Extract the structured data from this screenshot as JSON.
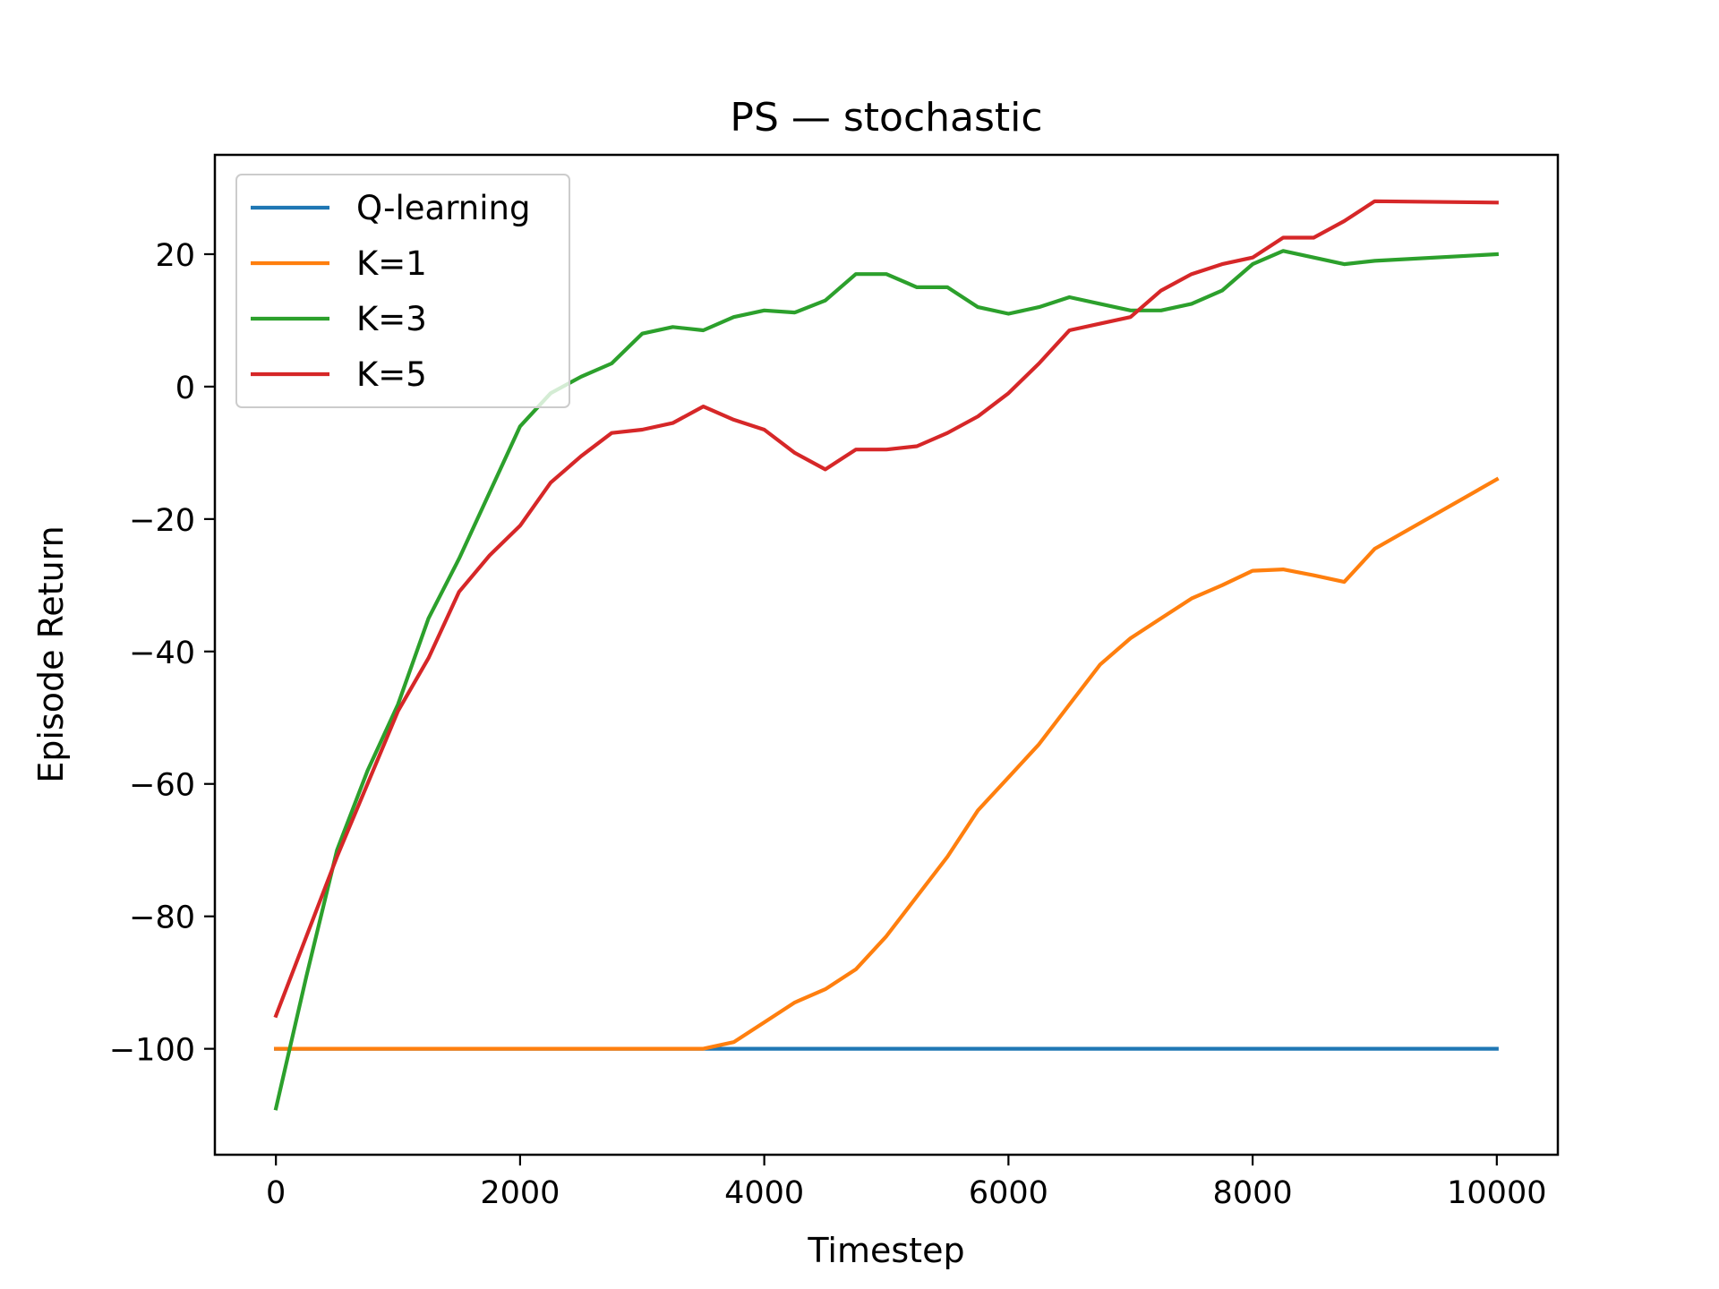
{
  "chart_data": {
    "type": "line",
    "title": "PS — stochastic",
    "xlabel": "Timestep",
    "ylabel": "Episode Return",
    "xlim": [
      -500,
      10500
    ],
    "ylim": [
      -116,
      35
    ],
    "xticks": [
      0,
      2000,
      4000,
      6000,
      8000,
      10000
    ],
    "xtick_labels": [
      "0",
      "2000",
      "4000",
      "6000",
      "8000",
      "10000"
    ],
    "yticks": [
      20,
      0,
      -20,
      -40,
      -60,
      -80,
      -100
    ],
    "ytick_labels": [
      "20",
      "0",
      "−20",
      "−40",
      "−60",
      "−80",
      "−100"
    ],
    "grid": false,
    "legend_position": "upper-left",
    "series": [
      {
        "name": "Q-learning",
        "color": "#1f77b4",
        "x": [
          0,
          10000
        ],
        "y": [
          -100,
          -100
        ]
      },
      {
        "name": "K=1",
        "color": "#ff7f0e",
        "x": [
          0,
          250,
          500,
          750,
          1000,
          1250,
          1500,
          1750,
          2000,
          2250,
          2500,
          2750,
          3000,
          3250,
          3500,
          3750,
          4000,
          4250,
          4500,
          4750,
          5000,
          5250,
          5500,
          5750,
          6000,
          6250,
          6500,
          6750,
          7000,
          7250,
          7500,
          7750,
          8000,
          8250,
          8500,
          8750,
          9000,
          10000
        ],
        "y": [
          -100,
          -100,
          -100,
          -100,
          -100,
          -100,
          -100,
          -100,
          -100,
          -100,
          -100,
          -100,
          -100,
          -100,
          -100,
          -99,
          -96,
          -93,
          -91,
          -88,
          -83,
          -77,
          -71,
          -64,
          -59,
          -54,
          -48,
          -42,
          -38,
          -35,
          -32,
          -30,
          -27.8,
          -27.6,
          -28.5,
          -29.5,
          -24.5,
          -14
        ]
      },
      {
        "name": "K=3",
        "color": "#2ca02c",
        "x": [
          0,
          250,
          500,
          750,
          1000,
          1250,
          1500,
          1750,
          2000,
          2250,
          2500,
          2750,
          3000,
          3250,
          3500,
          3750,
          4000,
          4250,
          4500,
          4750,
          5000,
          5250,
          5500,
          5750,
          6000,
          6250,
          6500,
          6750,
          7000,
          7250,
          7500,
          7750,
          8000,
          8250,
          8500,
          8750,
          9000,
          10000
        ],
        "y": [
          -109,
          -89,
          -70,
          -58,
          -48,
          -35,
          -26,
          -16,
          -6,
          -1,
          1.5,
          3.5,
          8,
          9,
          8.5,
          10.5,
          11.5,
          11.2,
          13,
          17,
          17,
          15,
          15,
          12,
          11,
          12,
          13.5,
          12.5,
          11.5,
          11.5,
          12.5,
          14.5,
          18.5,
          20.5,
          19.5,
          18.5,
          19,
          20
        ]
      },
      {
        "name": "K=5",
        "color": "#d62728",
        "x": [
          0,
          250,
          500,
          750,
          1000,
          1250,
          1500,
          1750,
          2000,
          2250,
          2500,
          2750,
          3000,
          3250,
          3500,
          3750,
          4000,
          4250,
          4500,
          4750,
          5000,
          5250,
          5500,
          5750,
          6000,
          6250,
          6500,
          6750,
          7000,
          7250,
          7500,
          7750,
          8000,
          8250,
          8500,
          8750,
          9000,
          10000
        ],
        "y": [
          -95,
          -83,
          -71,
          -60,
          -49,
          -41,
          -31,
          -25.5,
          -21,
          -14.5,
          -10.5,
          -7,
          -6.5,
          -5.5,
          -3,
          -5,
          -6.5,
          -10,
          -12.5,
          -9.5,
          -9.5,
          -9,
          -7,
          -4.5,
          -1,
          3.5,
          8.5,
          9.5,
          10.5,
          14.5,
          17,
          18.5,
          19.5,
          22.5,
          22.5,
          25,
          28,
          27.8
        ]
      }
    ]
  }
}
